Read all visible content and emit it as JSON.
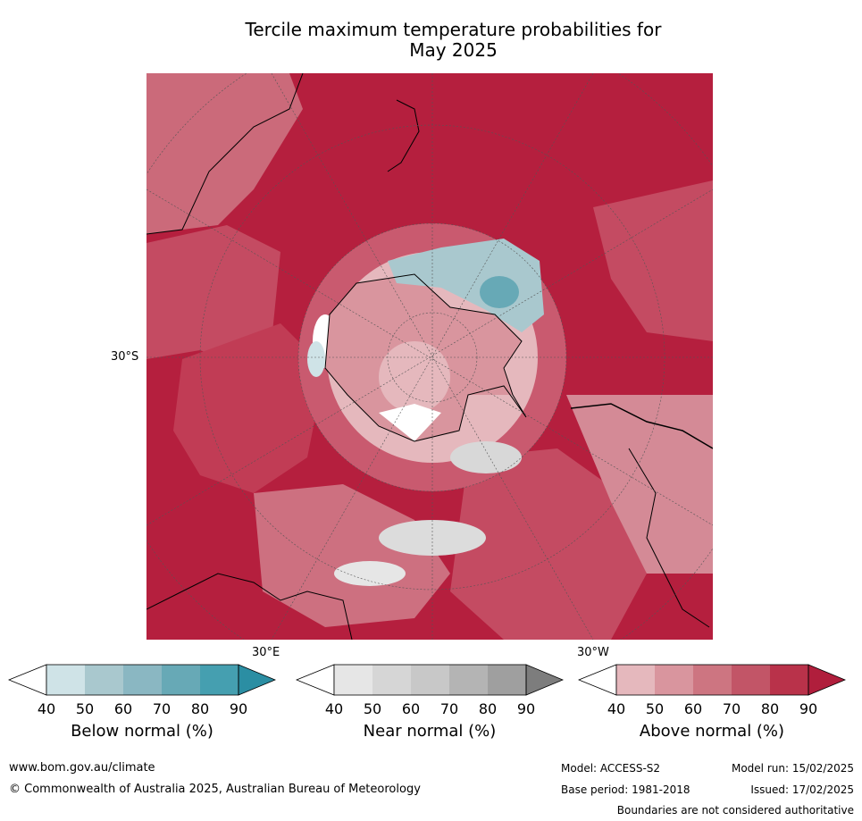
{
  "title_line1": "Tercile maximum temperature probabilities for",
  "title_line2": "May 2025",
  "axis_labels": {
    "lat": "30°S",
    "lon_east": "30°E",
    "lon_west": "30°W"
  },
  "colorbars": [
    {
      "label": "Below normal (%)",
      "ticks": [
        "40",
        "50",
        "60",
        "70",
        "80",
        "90"
      ],
      "colors": [
        "#ffffff",
        "#cfe3e7",
        "#a9c8ce",
        "#8ab7c2",
        "#67a9b6",
        "#459fb0",
        "#2b8ea3"
      ]
    },
    {
      "label": "Near normal (%)",
      "ticks": [
        "40",
        "50",
        "60",
        "70",
        "80",
        "90"
      ],
      "colors": [
        "#ffffff",
        "#e6e6e6",
        "#d6d6d6",
        "#c8c8c8",
        "#b4b4b4",
        "#9f9f9f",
        "#7d7d7d"
      ]
    },
    {
      "label": "Above normal (%)",
      "ticks": [
        "40",
        "50",
        "60",
        "70",
        "80",
        "90"
      ],
      "colors": [
        "#ffffff",
        "#e5b8bd",
        "#d9959e",
        "#cd7581",
        "#c25567",
        "#b9324a",
        "#b01e3c"
      ]
    }
  ],
  "footer": {
    "url": "www.bom.gov.au/climate",
    "copyright": "© Commonwealth of Australia 2025, Australian Bureau of Meteorology",
    "model": "Model: ACCESS-S2",
    "base_period": "Base period: 1981-2018",
    "model_run": "Model run: 15/02/2025",
    "issued": "Issued: 17/02/2025",
    "disclaimer": "Boundaries are not considered authoritative"
  }
}
